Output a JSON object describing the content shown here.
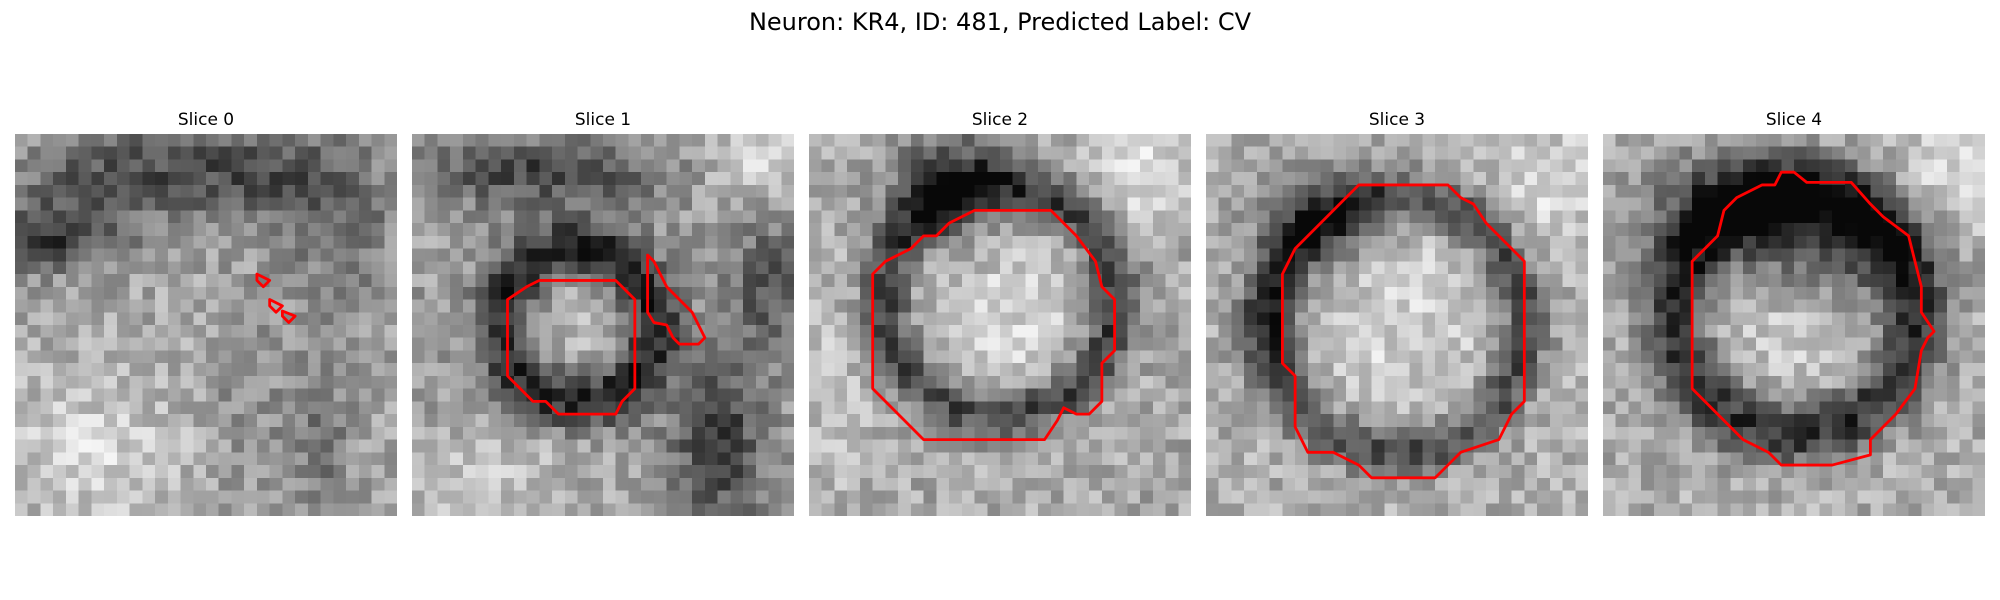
{
  "figure": {
    "title": "Neuron: KR4, ID: 481, Predicted Label: CV",
    "contour_color": "#ff0000"
  },
  "slices": [
    {
      "title": "Slice 0"
    },
    {
      "title": "Slice 1"
    },
    {
      "title": "Slice 2"
    },
    {
      "title": "Slice 3"
    },
    {
      "title": "Slice 4"
    }
  ]
}
